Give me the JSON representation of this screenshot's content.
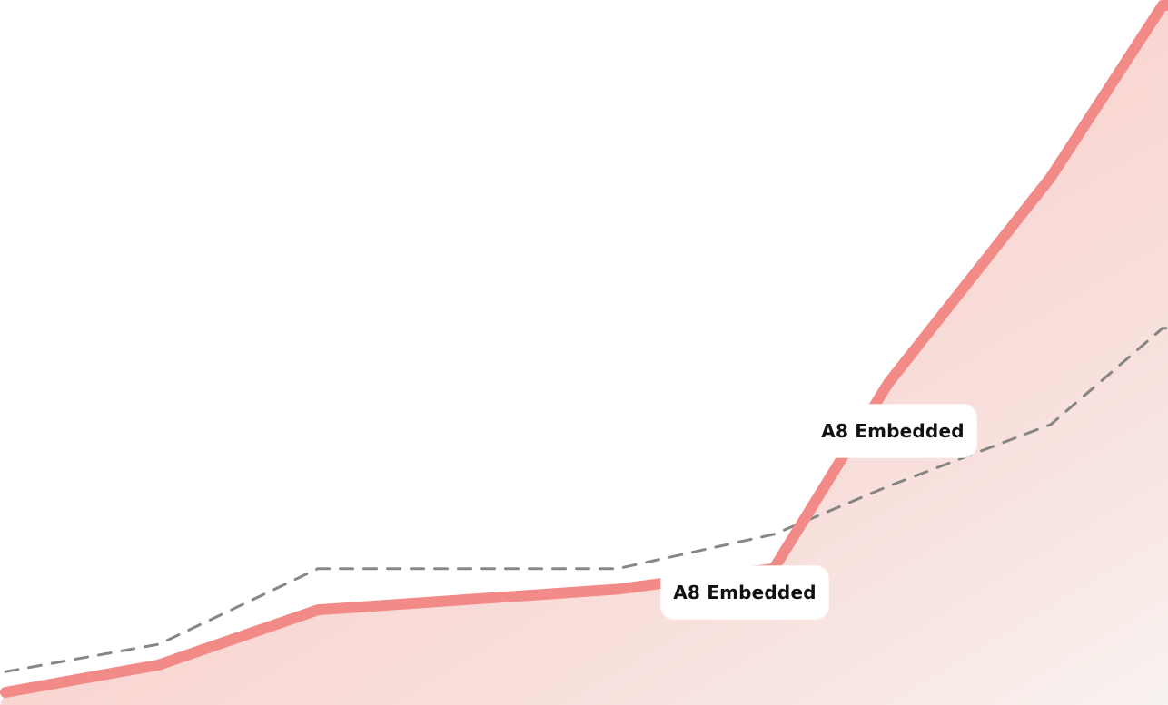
{
  "chart_data": {
    "type": "line",
    "x": [
      0,
      1,
      2,
      3,
      4,
      5,
      6,
      7,
      8
    ],
    "series": [
      {
        "values": [
          0,
          4,
          12,
          15,
          18,
          45,
          75,
          100,
          100
        ],
        "style": "solid",
        "color": "#F28B87"
      },
      {
        "values": [
          3,
          7,
          18,
          18,
          23,
          30,
          39,
          53,
          53
        ],
        "style": "dashed",
        "color": "#7A7A7A"
      }
    ],
    "annotations": [
      {
        "text": "A8 Embedded",
        "series_index": 0
      },
      {
        "text": "A8 Embedded",
        "series_index": 0
      }
    ],
    "colors": {
      "accent": "#F28B87",
      "fill_top": "#F4A7A2",
      "fill_bottom": "#F8F2EF",
      "dashed": "#7A7A7A",
      "label_bg": "#FFFFFF",
      "label_text": "#111111"
    },
    "xlabel": "",
    "ylabel": "",
    "ylim": [
      0,
      100
    ],
    "grid": false,
    "legend": "none"
  }
}
